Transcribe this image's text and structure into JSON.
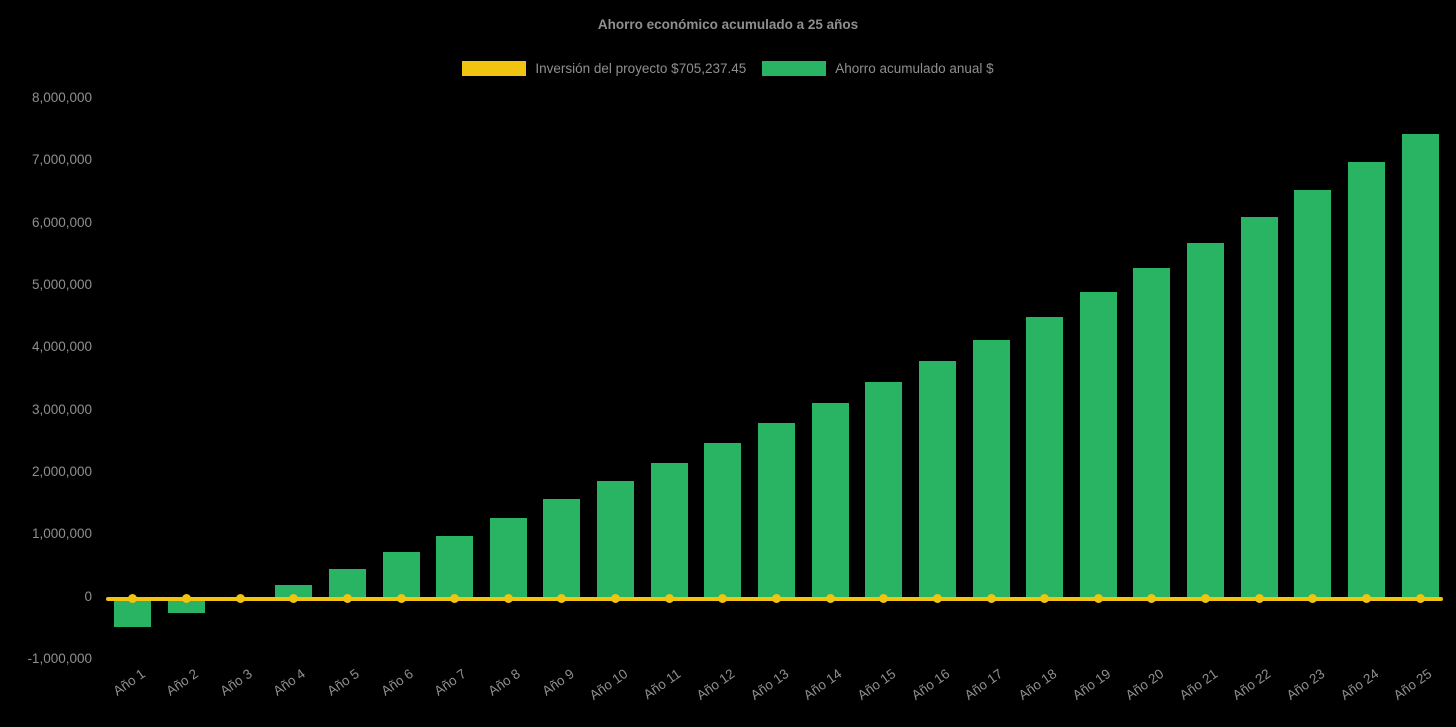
{
  "chart_data": {
    "type": "bar",
    "title": "Ahorro económico acumulado a 25 años",
    "background": "#000000",
    "text_color": "#8f8f8f",
    "grid": false,
    "legend_position": "top",
    "x_tick_rotation": -35,
    "ylim": [
      -1000000,
      8000000
    ],
    "ytick_step": 1000000,
    "ytick_labels": [
      "-1,000,000",
      "0",
      "1,000,000",
      "2,000,000",
      "3,000,000",
      "4,000,000",
      "5,000,000",
      "6,000,000",
      "7,000,000",
      "8,000,000"
    ],
    "categories": [
      "Año 1",
      "Año 2",
      "Año 3",
      "Año 4",
      "Año 5",
      "Año 6",
      "Año 7",
      "Año 8",
      "Año 9",
      "Año 10",
      "Año 11",
      "Año 12",
      "Año 13",
      "Año 14",
      "Año 15",
      "Año 16",
      "Año 17",
      "Año 18",
      "Año 19",
      "Año 20",
      "Año 21",
      "Año 22",
      "Año 23",
      "Año 24",
      "Año 25"
    ],
    "series": [
      {
        "name": "Inversión del proyecto $705,237.45",
        "type": "line",
        "color": "#f1c40f",
        "marker": "circle",
        "value": -30000
      },
      {
        "name": "Ahorro acumulado anual $",
        "type": "bar",
        "color": "#28b463",
        "values": [
          -480000,
          -270000,
          -20000,
          180000,
          450000,
          710000,
          980000,
          1270000,
          1560000,
          1850000,
          2150000,
          2470000,
          2780000,
          3110000,
          3440000,
          3780000,
          4120000,
          4490000,
          4890000,
          5280000,
          5680000,
          6090000,
          6520000,
          6970000,
          7430000
        ]
      }
    ]
  }
}
